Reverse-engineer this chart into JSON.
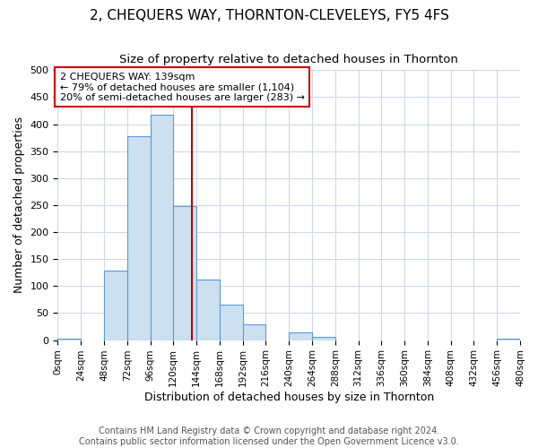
{
  "title": "2, CHEQUERS WAY, THORNTON-CLEVELEYS, FY5 4FS",
  "subtitle": "Size of property relative to detached houses in Thornton",
  "xlabel": "Distribution of detached houses by size in Thornton",
  "ylabel": "Number of detached properties",
  "bin_edges": [
    0,
    24,
    48,
    72,
    96,
    120,
    144,
    168,
    192,
    216,
    240,
    264,
    288,
    312,
    336,
    360,
    384,
    408,
    432,
    456,
    480
  ],
  "bin_counts": [
    2,
    0,
    128,
    378,
    418,
    248,
    112,
    65,
    30,
    0,
    15,
    6,
    0,
    0,
    0,
    0,
    0,
    0,
    0,
    3
  ],
  "bar_color": "#cce0f0",
  "bar_edge_color": "#5b9bd5",
  "vline_x": 139,
  "vline_color": "#c00000",
  "annotation_text": "2 CHEQUERS WAY: 139sqm\n← 79% of detached houses are smaller (1,104)\n20% of semi-detached houses are larger (283) →",
  "annotation_box_color": "#ffffff",
  "annotation_box_edge_color": "#cc0000",
  "ylim": [
    0,
    500
  ],
  "xlim": [
    0,
    480
  ],
  "footer_text": "Contains HM Land Registry data © Crown copyright and database right 2024.\nContains public sector information licensed under the Open Government Licence v3.0.",
  "tick_labels": [
    "0sqm",
    "24sqm",
    "48sqm",
    "72sqm",
    "96sqm",
    "120sqm",
    "144sqm",
    "168sqm",
    "192sqm",
    "216sqm",
    "240sqm",
    "264sqm",
    "288sqm",
    "312sqm",
    "336sqm",
    "360sqm",
    "384sqm",
    "408sqm",
    "432sqm",
    "456sqm",
    "480sqm"
  ],
  "title_fontsize": 11,
  "subtitle_fontsize": 9.5,
  "xlabel_fontsize": 9,
  "ylabel_fontsize": 9,
  "footer_fontsize": 7,
  "background_color": "#ffffff",
  "grid_color": "#d0d8e8",
  "annotation_fontsize": 8
}
